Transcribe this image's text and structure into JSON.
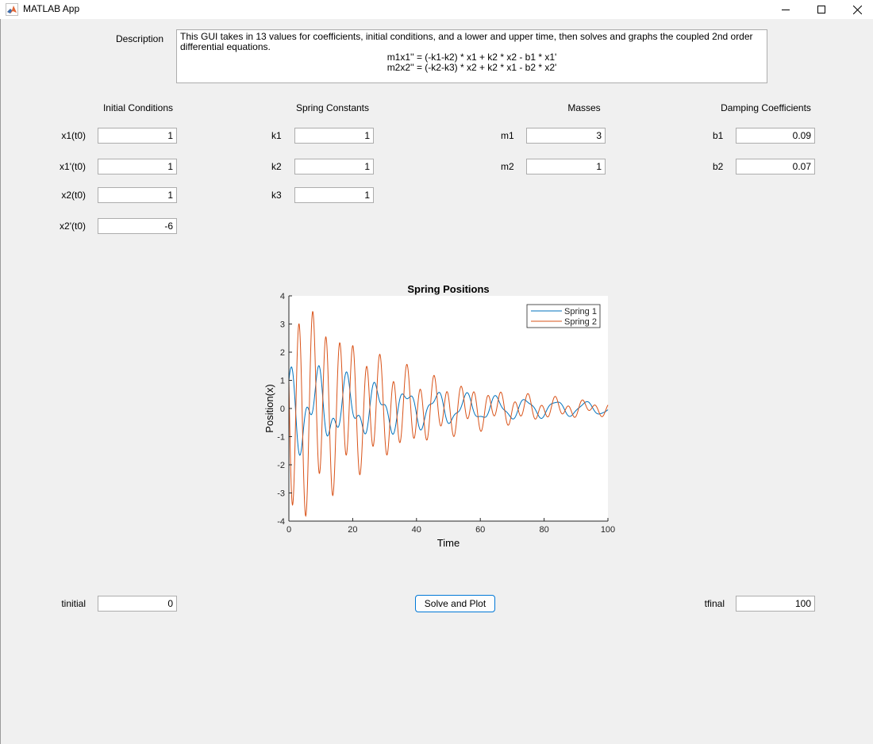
{
  "window": {
    "title": "MATLAB App"
  },
  "description": {
    "label": "Description",
    "text": "This GUI takes in 13 values for coefficients, initial conditions, and a lower and upper time, then solves and graphs the coupled 2nd order differential equations.",
    "eq1": "m1x1'' = (-k1-k2) * x1 + k2 * x2 - b1 * x1'",
    "eq2": "m2x2'' = (-k2-k3) * x2 + k2 * x1 - b2 * x2'"
  },
  "sections": {
    "initial_conditions": "Initial Conditions",
    "spring_constants": "Spring Constants",
    "masses": "Masses",
    "damping": "Damping Coefficients"
  },
  "fields": {
    "x1_t0": {
      "label": "x1(t0)",
      "value": "1"
    },
    "x1p_t0": {
      "label": "x1'(t0)",
      "value": "1"
    },
    "x2_t0": {
      "label": "x2(t0)",
      "value": "1"
    },
    "x2p_t0": {
      "label": "x2'(t0)",
      "value": "-6"
    },
    "k1": {
      "label": "k1",
      "value": "1"
    },
    "k2": {
      "label": "k2",
      "value": "1"
    },
    "k3": {
      "label": "k3",
      "value": "1"
    },
    "m1": {
      "label": "m1",
      "value": "3"
    },
    "m2": {
      "label": "m2",
      "value": "1"
    },
    "b1": {
      "label": "b1",
      "value": "0.09"
    },
    "b2": {
      "label": "b2",
      "value": "0.07"
    },
    "tinitial": {
      "label": "tinitial",
      "value": "0"
    },
    "tfinal": {
      "label": "tfinal",
      "value": "100"
    }
  },
  "button": {
    "solve_plot": "Solve and Plot"
  },
  "chart_data": {
    "type": "line",
    "title": "Spring Positions",
    "xlabel": "Time",
    "ylabel": "Position(x)",
    "xlim": [
      0,
      100
    ],
    "ylim": [
      -4,
      4
    ],
    "xticks": [
      "0",
      "20",
      "40",
      "60",
      "80",
      "100"
    ],
    "yticks": [
      "4",
      "3",
      "2",
      "1",
      "0",
      "-1",
      "-2",
      "-3",
      "-4"
    ],
    "grid": false,
    "legend_placement": "top-right",
    "series": [
      {
        "name": "Spring 1",
        "color": "#0072bd"
      },
      {
        "name": "Spring 2",
        "color": "#d95319"
      }
    ]
  }
}
